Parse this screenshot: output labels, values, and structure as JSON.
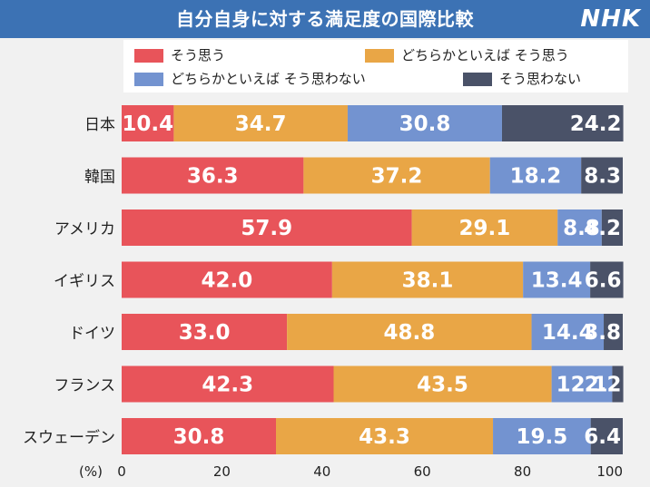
{
  "header": {
    "title": "自分自身に対する満足度の国際比較",
    "logo": "NHK"
  },
  "colors": {
    "header_bg": "#3c72b4",
    "series": [
      "#e8545a",
      "#e9a646",
      "#7393d0",
      "#4a5268"
    ]
  },
  "chart_data": {
    "type": "bar",
    "orientation": "horizontal",
    "stacked": true,
    "title": "自分自身に対する満足度の国際比較",
    "xlabel": "(%)",
    "xlim": [
      0,
      100
    ],
    "xticks": [
      "0",
      "20",
      "40",
      "60",
      "80",
      "100"
    ],
    "legend_position": "top",
    "categories": [
      "日本",
      "韓国",
      "アメリカ",
      "イギリス",
      "ドイツ",
      "フランス",
      "スウェーデン"
    ],
    "series": [
      {
        "name": "そう思う",
        "values": [
          "10.4",
          "36.3",
          "57.9",
          "42.0",
          "33.0",
          "42.3",
          "30.8"
        ]
      },
      {
        "name": "どちらかといえば そう思う",
        "values": [
          "34.7",
          "37.2",
          "29.1",
          "38.1",
          "48.8",
          "43.5",
          "43.3"
        ]
      },
      {
        "name": "どちらかといえば そう思わない",
        "values": [
          "30.8",
          "18.2",
          "8.8",
          "13.4",
          "14.4",
          "12.1",
          "19.5"
        ]
      },
      {
        "name": "そう思わない",
        "values": [
          "24.2",
          "8.3",
          "4.2",
          "6.6",
          "3.8",
          "2.2",
          "6.4"
        ]
      }
    ]
  }
}
